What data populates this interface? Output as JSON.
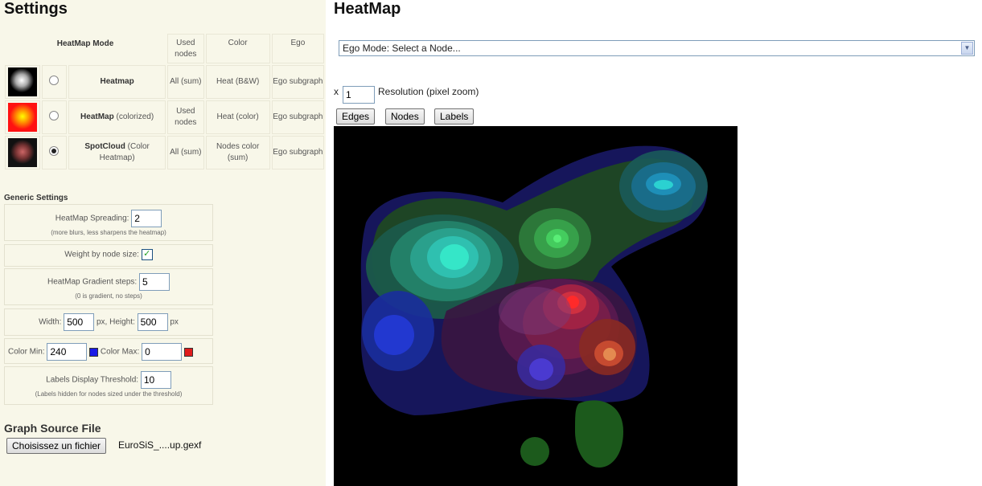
{
  "settings": {
    "title": "Settings",
    "modes_table": {
      "headers": {
        "mode": "HeatMap Mode",
        "used_nodes": "Used nodes",
        "color": "Color",
        "ego": "Ego"
      },
      "rows": [
        {
          "name": "Heatmap",
          "name_suffix": "",
          "used": "All (sum)",
          "color": "Heat (B&W)",
          "ego": "Ego subgraph",
          "selected": false,
          "thumb_icon": "heatmap-bw-thumbnail"
        },
        {
          "name": "HeatMap",
          "name_suffix": " (colorized)",
          "used": "Used nodes",
          "color": "Heat (color)",
          "ego": "Ego subgraph",
          "selected": false,
          "thumb_icon": "heatmap-color-thumbnail"
        },
        {
          "name": "SpotCloud",
          "name_suffix": " (Color Heatmap)",
          "used": "All (sum)",
          "color": "Nodes color (sum)",
          "ego": "Ego subgraph",
          "selected": true,
          "thumb_icon": "spotcloud-thumbnail"
        }
      ]
    },
    "generic": {
      "title": "Generic Settings",
      "spreading": {
        "label": "HeatMap Spreading:",
        "value": "2",
        "hint": "(more blurs, less sharpens the heatmap)"
      },
      "weight": {
        "label": "Weight by node size:",
        "checked": true,
        "check_glyph": "✓"
      },
      "gradient": {
        "label": "HeatMap Gradient steps:",
        "value": "5",
        "hint": "(0 is gradient, no steps)"
      },
      "size": {
        "width_label": "Width:",
        "width_value": "500",
        "px1": "px,",
        "height_label": "Height:",
        "height_value": "500",
        "px2": "px"
      },
      "colors": {
        "min_label": "Color Min:",
        "min_value": "240",
        "min_color": "#1a1ae6",
        "max_label": "Color Max:",
        "max_value": "0",
        "max_color": "#e01c1c"
      },
      "labels_threshold": {
        "label": "Labels Display Threshold:",
        "value": "10",
        "hint": "(Labels hidden for nodes sized under the threshold)"
      }
    },
    "source": {
      "title": "Graph Source File",
      "button": "Choisissez un fichier",
      "filename": "EuroSiS_....up.gexf"
    }
  },
  "heatmap": {
    "title": "HeatMap",
    "ego_select": "Ego Mode: Select a Node...",
    "resolution": {
      "prefix": "x",
      "value": "1",
      "label": "Resolution (pixel zoom)"
    },
    "buttons": {
      "edges": "Edges",
      "nodes": "Nodes",
      "labels": "Labels"
    },
    "background": "#000000"
  }
}
